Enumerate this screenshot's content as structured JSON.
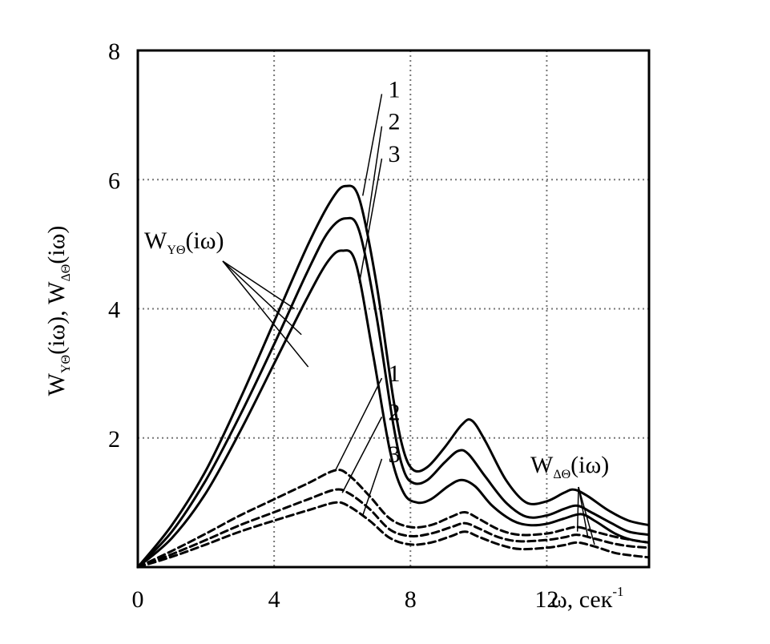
{
  "chart_data": {
    "type": "line",
    "xlabel": "ω, сек",
    "xlabel_sup": "-1",
    "ylabel_parts": [
      {
        "main": "W",
        "sub": "YΘ",
        "rest": "(iω), "
      },
      {
        "main": "W",
        "sub": "ΔΘ",
        "rest": "(iω)"
      }
    ],
    "xlim": [
      0,
      15
    ],
    "ylim": [
      0,
      8
    ],
    "x_ticks": [
      0,
      4,
      8,
      12
    ],
    "x_tick_labels": [
      "0",
      "4",
      "8",
      "12"
    ],
    "y_ticks": [
      2,
      4,
      6,
      8
    ],
    "y_tick_labels": [
      "2",
      "4",
      "6",
      "8"
    ],
    "grid": true,
    "group_labels": [
      {
        "main": "W",
        "sub": "YΘ",
        "rest": "(iω)",
        "group": "solid"
      },
      {
        "main": "W",
        "sub": "ΔΘ",
        "rest": "(iω)",
        "group": "dashed"
      }
    ],
    "series": [
      {
        "name": "1",
        "group": "solid",
        "style": "solid",
        "points": [
          [
            0,
            0
          ],
          [
            1,
            0.65
          ],
          [
            2,
            1.5
          ],
          [
            3,
            2.6
          ],
          [
            4,
            3.8
          ],
          [
            5,
            5.0
          ],
          [
            5.7,
            5.7
          ],
          [
            6.1,
            5.9
          ],
          [
            6.5,
            5.7
          ],
          [
            7.0,
            4.4
          ],
          [
            7.5,
            2.6
          ],
          [
            7.8,
            1.8
          ],
          [
            8.1,
            1.5
          ],
          [
            8.5,
            1.55
          ],
          [
            9.0,
            1.85
          ],
          [
            9.5,
            2.2
          ],
          [
            9.8,
            2.27
          ],
          [
            10.2,
            1.95
          ],
          [
            10.8,
            1.35
          ],
          [
            11.4,
            1.0
          ],
          [
            12.0,
            1.02
          ],
          [
            12.5,
            1.15
          ],
          [
            12.8,
            1.2
          ],
          [
            13.2,
            1.1
          ],
          [
            13.8,
            0.88
          ],
          [
            14.4,
            0.72
          ],
          [
            15,
            0.65
          ]
        ]
      },
      {
        "name": "2",
        "group": "solid",
        "style": "solid",
        "points": [
          [
            0,
            0
          ],
          [
            1,
            0.55
          ],
          [
            2,
            1.35
          ],
          [
            3,
            2.35
          ],
          [
            4,
            3.45
          ],
          [
            5,
            4.6
          ],
          [
            5.6,
            5.2
          ],
          [
            6.1,
            5.4
          ],
          [
            6.5,
            5.2
          ],
          [
            7.0,
            3.9
          ],
          [
            7.5,
            2.2
          ],
          [
            7.8,
            1.5
          ],
          [
            8.1,
            1.3
          ],
          [
            8.5,
            1.35
          ],
          [
            9.0,
            1.62
          ],
          [
            9.4,
            1.8
          ],
          [
            9.7,
            1.75
          ],
          [
            10.2,
            1.4
          ],
          [
            10.8,
            1.0
          ],
          [
            11.4,
            0.78
          ],
          [
            12.0,
            0.8
          ],
          [
            12.5,
            0.9
          ],
          [
            12.9,
            0.95
          ],
          [
            13.3,
            0.85
          ],
          [
            13.9,
            0.68
          ],
          [
            14.4,
            0.55
          ],
          [
            15,
            0.5
          ]
        ]
      },
      {
        "name": "3",
        "group": "solid",
        "style": "solid",
        "points": [
          [
            0,
            0
          ],
          [
            1,
            0.45
          ],
          [
            2,
            1.15
          ],
          [
            3,
            2.1
          ],
          [
            4,
            3.15
          ],
          [
            5,
            4.2
          ],
          [
            5.6,
            4.75
          ],
          [
            6.0,
            4.9
          ],
          [
            6.4,
            4.7
          ],
          [
            6.9,
            3.3
          ],
          [
            7.4,
            1.8
          ],
          [
            7.8,
            1.15
          ],
          [
            8.2,
            1.0
          ],
          [
            8.6,
            1.05
          ],
          [
            9.1,
            1.25
          ],
          [
            9.5,
            1.35
          ],
          [
            9.9,
            1.25
          ],
          [
            10.4,
            0.95
          ],
          [
            11.0,
            0.72
          ],
          [
            11.5,
            0.65
          ],
          [
            12.0,
            0.67
          ],
          [
            12.5,
            0.75
          ],
          [
            13.0,
            0.82
          ],
          [
            13.4,
            0.72
          ],
          [
            14.0,
            0.52
          ],
          [
            14.5,
            0.42
          ],
          [
            15,
            0.38
          ]
        ]
      },
      {
        "name": "1",
        "group": "dashed",
        "style": "dashed",
        "points": [
          [
            0,
            0
          ],
          [
            1,
            0.25
          ],
          [
            2,
            0.52
          ],
          [
            3,
            0.8
          ],
          [
            4,
            1.05
          ],
          [
            5,
            1.3
          ],
          [
            5.8,
            1.5
          ],
          [
            6.2,
            1.42
          ],
          [
            6.8,
            1.1
          ],
          [
            7.4,
            0.75
          ],
          [
            8.0,
            0.62
          ],
          [
            8.6,
            0.65
          ],
          [
            9.2,
            0.78
          ],
          [
            9.6,
            0.85
          ],
          [
            10.0,
            0.75
          ],
          [
            10.6,
            0.58
          ],
          [
            11.2,
            0.5
          ],
          [
            12.0,
            0.52
          ],
          [
            12.5,
            0.58
          ],
          [
            12.9,
            0.62
          ],
          [
            13.4,
            0.55
          ],
          [
            14.0,
            0.47
          ],
          [
            14.5,
            0.42
          ],
          [
            15,
            0.38
          ]
        ]
      },
      {
        "name": "2",
        "group": "dashed",
        "style": "dashed",
        "points": [
          [
            0,
            0
          ],
          [
            1,
            0.2
          ],
          [
            2,
            0.42
          ],
          [
            3,
            0.65
          ],
          [
            4,
            0.85
          ],
          [
            5,
            1.05
          ],
          [
            5.8,
            1.2
          ],
          [
            6.2,
            1.14
          ],
          [
            6.8,
            0.9
          ],
          [
            7.4,
            0.58
          ],
          [
            8.0,
            0.48
          ],
          [
            8.6,
            0.52
          ],
          [
            9.2,
            0.62
          ],
          [
            9.6,
            0.68
          ],
          [
            10.0,
            0.6
          ],
          [
            10.6,
            0.46
          ],
          [
            11.2,
            0.4
          ],
          [
            12.0,
            0.42
          ],
          [
            12.5,
            0.46
          ],
          [
            12.9,
            0.5
          ],
          [
            13.4,
            0.44
          ],
          [
            14.0,
            0.36
          ],
          [
            14.5,
            0.32
          ],
          [
            15,
            0.3
          ]
        ]
      },
      {
        "name": "3",
        "group": "dashed",
        "style": "dashed",
        "points": [
          [
            0,
            0
          ],
          [
            1,
            0.16
          ],
          [
            2,
            0.35
          ],
          [
            3,
            0.55
          ],
          [
            4,
            0.72
          ],
          [
            5,
            0.88
          ],
          [
            5.8,
            1.0
          ],
          [
            6.2,
            0.94
          ],
          [
            6.8,
            0.72
          ],
          [
            7.4,
            0.45
          ],
          [
            8.0,
            0.35
          ],
          [
            8.6,
            0.38
          ],
          [
            9.2,
            0.48
          ],
          [
            9.6,
            0.55
          ],
          [
            10.0,
            0.47
          ],
          [
            10.6,
            0.35
          ],
          [
            11.2,
            0.28
          ],
          [
            12.0,
            0.3
          ],
          [
            12.5,
            0.34
          ],
          [
            12.9,
            0.38
          ],
          [
            13.4,
            0.32
          ],
          [
            14.0,
            0.22
          ],
          [
            14.5,
            0.18
          ],
          [
            15,
            0.15
          ]
        ]
      }
    ]
  }
}
